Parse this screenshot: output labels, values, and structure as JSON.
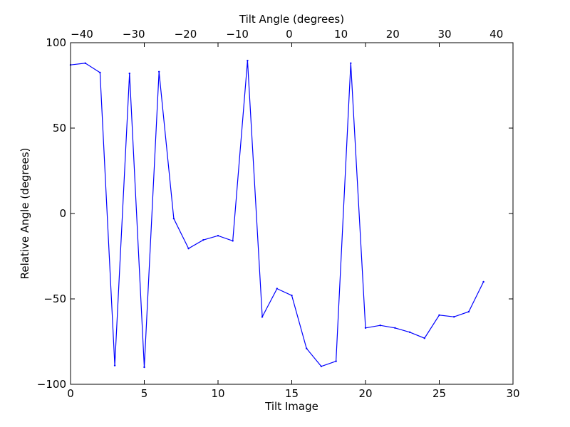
{
  "chart_data": {
    "type": "line",
    "xlabel": "Tilt Image",
    "ylabel": "Relative Angle (degrees)",
    "top_xlabel": "Tilt Angle (degrees)",
    "xlim": [
      0,
      30
    ],
    "ylim": [
      -100,
      100
    ],
    "top_xlim": [
      -42.2,
      43.2
    ],
    "x_ticks": [
      0,
      5,
      10,
      15,
      20,
      25,
      30
    ],
    "y_ticks": [
      -100,
      -50,
      0,
      50,
      100
    ],
    "top_x_ticks": [
      -40,
      -30,
      -20,
      -10,
      0,
      10,
      20,
      30,
      40
    ],
    "x_tick_labels": [
      "0",
      "5",
      "10",
      "15",
      "20",
      "25",
      "30"
    ],
    "y_tick_labels": [
      "−100",
      "−50",
      "0",
      "50",
      "100"
    ],
    "top_x_tick_labels": [
      "−40",
      "−30",
      "−20",
      "−10",
      "0",
      "10",
      "20",
      "30",
      "40"
    ],
    "grid": false,
    "series": [
      {
        "color": "#0000ff",
        "x": [
          0,
          1,
          2,
          3,
          4,
          5,
          6,
          7,
          8,
          9,
          10,
          11,
          12,
          13,
          14,
          15,
          16,
          17,
          18,
          19,
          20,
          21,
          22,
          23,
          24,
          25,
          26,
          27,
          28
        ],
        "y": [
          87,
          88,
          82.5,
          -89,
          82,
          -90,
          83,
          -3,
          -20.5,
          -15.5,
          -13,
          -16,
          89.5,
          -60.5,
          -44,
          -48,
          -79,
          -89.5,
          -86.5,
          88,
          -67,
          -65.5,
          -67,
          -69.5,
          -73,
          -59.5,
          -60.5,
          -57.5,
          -40
        ]
      }
    ]
  }
}
